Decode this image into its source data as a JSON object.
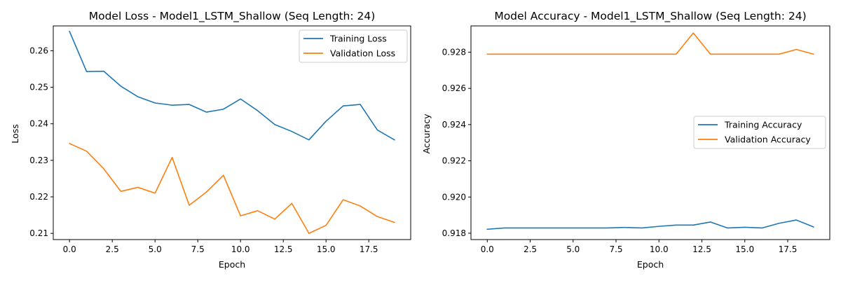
{
  "chart_data": [
    {
      "type": "line",
      "title": "Model Loss - Model1_LSTM_Shallow (Seq Length: 24)",
      "xlabel": "Epoch",
      "ylabel": "Loss",
      "xlim": [
        -0.95,
        19.95
      ],
      "ylim": [
        0.2083,
        0.2668
      ],
      "xticks": [
        0,
        2.5,
        5,
        7.5,
        10,
        12.5,
        15,
        17.5
      ],
      "xtick_labels": [
        "0.0",
        "2.5",
        "5.0",
        "7.5",
        "10.0",
        "12.5",
        "15.0",
        "17.5"
      ],
      "yticks": [
        0.21,
        0.22,
        0.23,
        0.24,
        0.25,
        0.26
      ],
      "ytick_labels": [
        "0.21",
        "0.22",
        "0.23",
        "0.24",
        "0.25",
        "0.26"
      ],
      "legend_position": "top-right",
      "grid": false,
      "x": [
        0,
        1,
        2,
        3,
        4,
        5,
        6,
        7,
        8,
        9,
        10,
        11,
        12,
        13,
        14,
        15,
        16,
        17,
        18,
        19
      ],
      "series": [
        {
          "name": "Training Loss",
          "color": "#1f77b4",
          "values": [
            0.2653,
            0.2543,
            0.2544,
            0.2503,
            0.2474,
            0.2457,
            0.2451,
            0.2453,
            0.2432,
            0.244,
            0.2468,
            0.2436,
            0.2398,
            0.2379,
            0.2356,
            0.2407,
            0.2449,
            0.2453,
            0.2383,
            0.2356
          ]
        },
        {
          "name": "Validation Loss",
          "color": "#ff7f0e",
          "values": [
            0.2346,
            0.2325,
            0.2277,
            0.2215,
            0.2226,
            0.221,
            0.2308,
            0.2177,
            0.2213,
            0.2259,
            0.2148,
            0.2162,
            0.2139,
            0.2182,
            0.21,
            0.2122,
            0.2192,
            0.2175,
            0.2146,
            0.213
          ]
        }
      ]
    },
    {
      "type": "line",
      "title": "Model Accuracy - Model1_LSTM_Shallow (Seq Length: 24)",
      "xlabel": "Epoch",
      "ylabel": "Accuracy",
      "xlim": [
        -0.95,
        19.95
      ],
      "ylim": [
        0.91765,
        0.92945
      ],
      "xticks": [
        0,
        2.5,
        5,
        7.5,
        10,
        12.5,
        15,
        17.5
      ],
      "xtick_labels": [
        "0.0",
        "2.5",
        "5.0",
        "7.5",
        "10.0",
        "12.5",
        "15.0",
        "17.5"
      ],
      "yticks": [
        0.918,
        0.92,
        0.922,
        0.924,
        0.926,
        0.928
      ],
      "ytick_labels": [
        "0.918",
        "0.920",
        "0.922",
        "0.924",
        "0.926",
        "0.928"
      ],
      "legend_position": "center-right",
      "grid": false,
      "x": [
        0,
        1,
        2,
        3,
        4,
        5,
        6,
        7,
        8,
        9,
        10,
        11,
        12,
        13,
        14,
        15,
        16,
        17,
        18,
        19
      ],
      "series": [
        {
          "name": "Training Accuracy",
          "color": "#1f77b4",
          "values": [
            0.91822,
            0.91829,
            0.91829,
            0.91829,
            0.91829,
            0.91829,
            0.91829,
            0.91829,
            0.91832,
            0.91829,
            0.91838,
            0.91845,
            0.91845,
            0.91862,
            0.91829,
            0.91833,
            0.91829,
            0.91855,
            0.91873,
            0.91835
          ]
        },
        {
          "name": "Validation Accuracy",
          "color": "#ff7f0e",
          "values": [
            0.92789,
            0.92789,
            0.92789,
            0.92789,
            0.92789,
            0.92789,
            0.92789,
            0.92789,
            0.92789,
            0.92789,
            0.92789,
            0.92789,
            0.92906,
            0.92789,
            0.92789,
            0.92789,
            0.92789,
            0.92789,
            0.92815,
            0.92789
          ]
        }
      ]
    }
  ]
}
